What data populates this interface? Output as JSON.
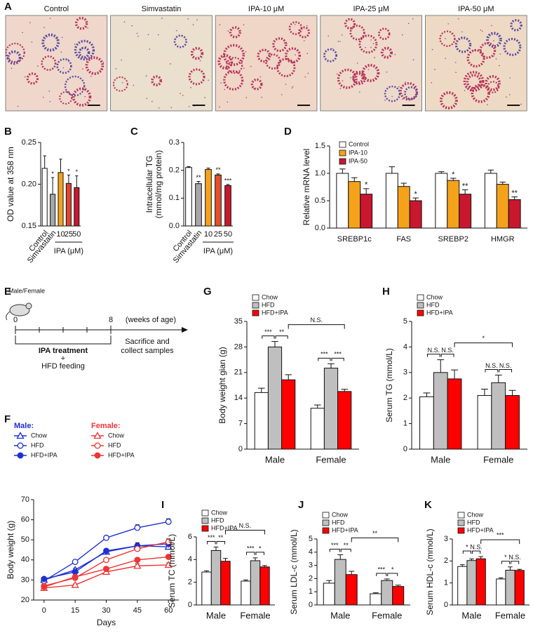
{
  "panel_a": {
    "panel": "A",
    "labels": [
      "Control",
      "Simvastatin",
      "IPA-10 μM",
      "IPA-25 μM",
      "IPA-50 μM"
    ]
  },
  "panel_e": {
    "panel": "E",
    "subject": "Male/Female",
    "start": "0",
    "end": "8",
    "unit": "(weeks of age)",
    "treatment": "IPA treatment",
    "plus": "+",
    "feeding": "HFD feeding",
    "endpoint": [
      "Sacrifice and",
      "collect samples"
    ]
  },
  "chart_data": [
    {
      "panel": "B",
      "type": "bar",
      "ylabel": "OD value at 358 nm",
      "categories": [
        "Control",
        "Simvastatin",
        "10",
        "25",
        "50"
      ],
      "category_group": "IPA (μM)",
      "values": [
        0.219,
        0.188,
        0.214,
        0.201,
        0.196
      ],
      "errors": [
        0.015,
        0.02,
        0.016,
        0.01,
        0.014
      ],
      "colors": [
        "#ffffff",
        "#a6a6a6",
        "#f5a21b",
        "#e0452b",
        "#c8172f"
      ],
      "significance": [
        null,
        "*",
        null,
        "*",
        "*"
      ],
      "ylim": [
        0.15,
        0.25
      ],
      "yticks": [
        0.15,
        {
          "value": 0.2,
          "label": "0.20"
        },
        0.25
      ]
    },
    {
      "panel": "C",
      "type": "bar",
      "ylabel": [
        "Intracellular TG",
        "(mmol/mg protein)"
      ],
      "categories": [
        "Control",
        "Simvastatin",
        "10",
        "25",
        "50"
      ],
      "category_group": "IPA (μM)",
      "values": [
        0.21,
        0.152,
        0.203,
        0.183,
        0.145
      ],
      "errors": [
        0.003,
        0.008,
        0.005,
        0.004,
        0.004
      ],
      "colors": [
        "#ffffff",
        "#a6a6a6",
        "#f5a21b",
        "#e3502a",
        "#c8172f"
      ],
      "significance": [
        null,
        "**",
        null,
        "**",
        "***"
      ],
      "ylim": [
        0,
        0.3
      ],
      "yticks": [
        {
          "value": 0,
          "label": "0.0"
        },
        0.1,
        0.2,
        0.3
      ]
    },
    {
      "panel": "D",
      "type": "bar",
      "ylabel": "Relative mRNA level",
      "legend": "top-left",
      "categories": [
        "SREBP1c",
        "FAS",
        "SREBP2",
        "HMGR"
      ],
      "series": [
        {
          "name": "Control",
          "color": "#ffffff",
          "values": [
            1.0,
            1.0,
            1.0,
            1.0
          ],
          "errors": [
            0.08,
            0.12,
            0.03,
            0.06
          ],
          "significance": [
            null,
            null,
            null,
            null
          ]
        },
        {
          "name": "IPA-10",
          "color": "#f5a21b",
          "values": [
            0.85,
            0.76,
            0.87,
            0.8
          ],
          "errors": [
            0.07,
            0.06,
            0.04,
            0.04
          ],
          "significance": [
            null,
            null,
            "*",
            null
          ]
        },
        {
          "name": "IPA-50",
          "color": "#c8172f",
          "values": [
            0.62,
            0.5,
            0.62,
            0.52
          ],
          "errors": [
            0.1,
            0.05,
            0.08,
            0.05
          ],
          "significance": [
            "*",
            "*",
            "**",
            "**"
          ]
        }
      ],
      "ylim": [
        0,
        1.5
      ],
      "yticks": [
        {
          "value": 0,
          "label": "0.0"
        },
        0.5,
        {
          "value": 1,
          "label": "1.0"
        },
        1.5
      ]
    },
    {
      "panel": "F",
      "type": "line",
      "xlabel": "Days",
      "ylabel": "Body weight (g)",
      "x": [
        0,
        15,
        30,
        45,
        60
      ],
      "xlim": [
        -5,
        65
      ],
      "xticks": [
        0,
        15,
        30,
        45,
        60
      ],
      "ylim": [
        20,
        70
      ],
      "yticks": [
        20,
        30,
        40,
        50,
        60,
        70
      ],
      "series_groups": [
        {
          "name": "Male:",
          "series": [
            {
              "name": "Chow",
              "color": "#1f2fd0",
              "marker": "triangle",
              "filled": false,
              "values": [
                30,
                35,
                44,
                47,
                46.5
              ],
              "errors": [
                0.5,
                0.8,
                1,
                1,
                1
              ]
            },
            {
              "name": "HFD",
              "color": "#1f2fd0",
              "marker": "circle",
              "filled": false,
              "values": [
                29.5,
                39,
                51,
                56,
                59
              ],
              "errors": [
                0.5,
                0.5,
                1,
                1.5,
                1.5
              ]
            },
            {
              "name": "HFD+IPA",
              "color": "#1f2fd0",
              "marker": "circle",
              "filled": true,
              "values": [
                30.5,
                34,
                44.5,
                47,
                48
              ],
              "errors": [
                0.5,
                1,
                1,
                1.5,
                2
              ]
            }
          ]
        },
        {
          "name": "Female:",
          "series": [
            {
              "name": "Chow",
              "color": "#ee3535",
              "marker": "triangle",
              "filled": false,
              "values": [
                26,
                27.5,
                34,
                37,
                37.5
              ],
              "errors": [
                0.5,
                0.5,
                1,
                1,
                1
              ]
            },
            {
              "name": "HFD",
              "color": "#ee3535",
              "marker": "circle",
              "filled": false,
              "values": [
                27,
                31,
                40,
                45.5,
                49
              ],
              "errors": [
                0.5,
                0.5,
                1,
                1,
                1.5
              ]
            },
            {
              "name": "HFD+IPA",
              "color": "#ee3535",
              "marker": "circle",
              "filled": true,
              "values": [
                26.5,
                31.5,
                35.5,
                40,
                41.5
              ],
              "errors": [
                0.5,
                0.8,
                1,
                0.8,
                0.8
              ]
            }
          ]
        }
      ]
    },
    {
      "panel": "G",
      "type": "bar",
      "ylabel": "Body weight gian (g)",
      "legend": "top-left",
      "categories": [
        "Male",
        "Female"
      ],
      "series": [
        {
          "name": "Chow",
          "color": "#ffffff",
          "values": [
            15.5,
            11.2
          ],
          "errors": [
            1.2,
            0.9
          ]
        },
        {
          "name": "HFD",
          "color": "#bfbfbf",
          "values": [
            28,
            22.2
          ],
          "errors": [
            1.5,
            1.2
          ]
        },
        {
          "name": "HFD+IPA",
          "color": "#ff0000",
          "values": [
            19,
            15.8
          ],
          "errors": [
            1.4,
            0.6
          ]
        }
      ],
      "pair_significance": [
        [
          "***",
          "**"
        ],
        [
          "***",
          "***"
        ]
      ],
      "cross_significance": "N.S.",
      "ylim": [
        0,
        35
      ],
      "yticks": [
        0,
        7,
        14,
        21,
        28,
        35
      ]
    },
    {
      "panel": "H",
      "type": "bar",
      "ylabel": "Serum TG (mmol/L)",
      "legend": "top-left",
      "categories": [
        "Male",
        "Female"
      ],
      "series": [
        {
          "name": "Chow",
          "color": "#ffffff",
          "values": [
            2.05,
            2.1
          ],
          "errors": [
            0.15,
            0.25
          ]
        },
        {
          "name": "HFD",
          "color": "#bfbfbf",
          "values": [
            3.0,
            2.6
          ],
          "errors": [
            0.5,
            0.3
          ]
        },
        {
          "name": "HFD+IPA",
          "color": "#ff0000",
          "values": [
            2.75,
            2.1
          ],
          "errors": [
            0.35,
            0.2
          ]
        }
      ],
      "pair_significance": [
        [
          "N.S.",
          "N.S."
        ],
        [
          "N.S.",
          "N.S."
        ]
      ],
      "cross_significance": "*",
      "ylim": [
        0,
        5
      ],
      "yticks": [
        0,
        1,
        2,
        3,
        4,
        5
      ]
    },
    {
      "panel": "I",
      "type": "bar",
      "ylabel": "Serum TC (mmol/L)",
      "legend": "top-left",
      "categories": [
        "Male",
        "Female"
      ],
      "series": [
        {
          "name": "Chow",
          "color": "#ffffff",
          "values": [
            2.9,
            2.1
          ],
          "errors": [
            0.1,
            0.1
          ]
        },
        {
          "name": "HFD",
          "color": "#bfbfbf",
          "values": [
            4.8,
            3.9
          ],
          "errors": [
            0.3,
            0.25
          ]
        },
        {
          "name": "HFD+IPA",
          "color": "#ff0000",
          "values": [
            3.85,
            3.35
          ],
          "errors": [
            0.25,
            0.12
          ]
        }
      ],
      "pair_significance": [
        [
          "***",
          "**"
        ],
        [
          "***",
          "*"
        ]
      ],
      "cross_significance": "N.S.",
      "ylim": [
        0,
        6
      ],
      "yticks": [
        0,
        2,
        4,
        6
      ]
    },
    {
      "panel": "J",
      "type": "bar",
      "ylabel": "Serum LDL-c (mmol/L)",
      "legend": "top-left",
      "categories": [
        "Male",
        "Female"
      ],
      "series": [
        {
          "name": "Chow",
          "color": "#ffffff",
          "values": [
            1.65,
            0.85
          ],
          "errors": [
            0.2,
            0.07
          ]
        },
        {
          "name": "HFD",
          "color": "#bfbfbf",
          "values": [
            3.45,
            1.85
          ],
          "errors": [
            0.35,
            0.12
          ]
        },
        {
          "name": "HFD+IPA",
          "color": "#ff0000",
          "values": [
            2.3,
            1.4
          ],
          "errors": [
            0.25,
            0.1
          ]
        }
      ],
      "pair_significance": [
        [
          "***",
          "**"
        ],
        [
          "***",
          "*"
        ]
      ],
      "cross_significance": "**",
      "ylim": [
        0,
        5
      ],
      "yticks": [
        0,
        1,
        2,
        3,
        4,
        5
      ]
    },
    {
      "panel": "K",
      "type": "bar",
      "ylabel": "Serum HDL-c (mmol/L)",
      "legend": "top-left",
      "categories": [
        "Male",
        "Female"
      ],
      "series": [
        {
          "name": "Chow",
          "color": "#ffffff",
          "values": [
            1.75,
            1.18
          ],
          "errors": [
            0.08,
            0.05
          ]
        },
        {
          "name": "HFD",
          "color": "#bfbfbf",
          "values": [
            2.02,
            1.58
          ],
          "errors": [
            0.07,
            0.15
          ]
        },
        {
          "name": "HFD+IPA",
          "color": "#ff0000",
          "values": [
            2.1,
            1.57
          ],
          "errors": [
            0.1,
            0.05
          ]
        }
      ],
      "pair_significance": [
        [
          "*",
          "N.S."
        ],
        [
          "*",
          "N.S."
        ]
      ],
      "cross_significance": "***",
      "ylim": [
        0,
        3
      ],
      "yticks": [
        0,
        1,
        2,
        3
      ]
    }
  ]
}
